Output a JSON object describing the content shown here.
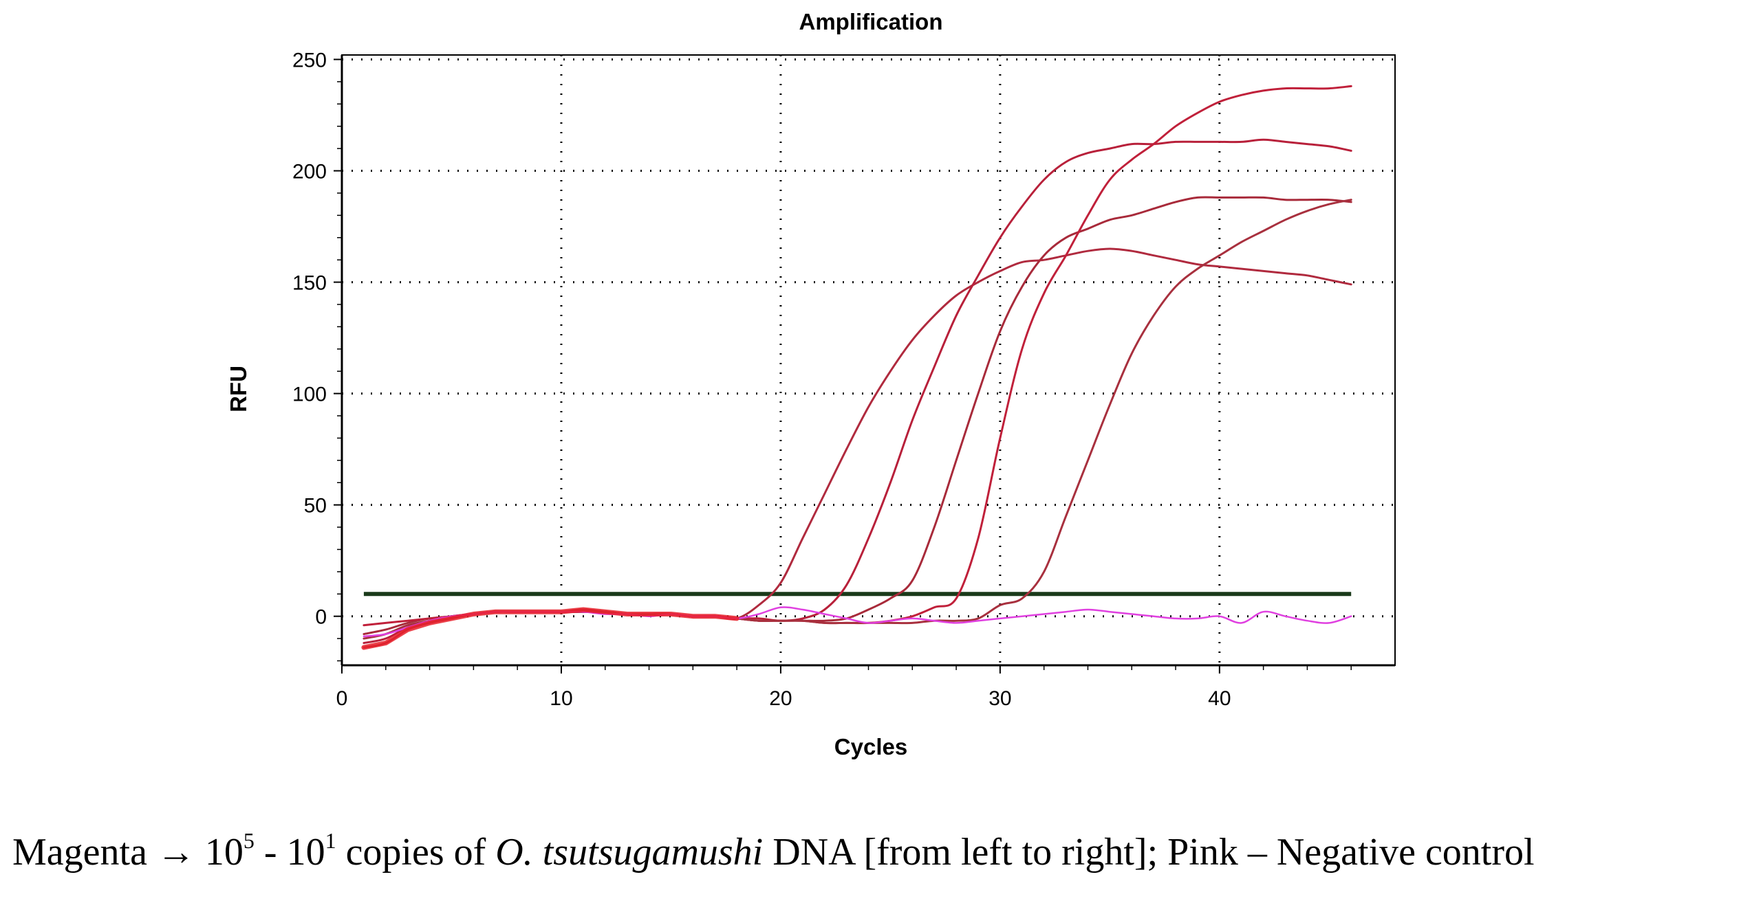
{
  "caption": {
    "series_word": "Magenta",
    "arrow": "→",
    "base_high": "10",
    "exp_high": "5",
    "range_sep": " - ",
    "base_low": "10",
    "exp_low": "1",
    "text_copies": " copies of ",
    "organism": "O. tsutsugamushi",
    "text_dna": " DNA [from left to right]; Pink – Negative control"
  },
  "chart_data": {
    "type": "line",
    "title": "Amplification",
    "xlabel": "Cycles",
    "ylabel": "RFU",
    "xlim": [
      0,
      48
    ],
    "ylim": [
      -22,
      252
    ],
    "xticks": [
      0,
      10,
      20,
      30,
      40
    ],
    "yticks": [
      0,
      50,
      100,
      150,
      200,
      250
    ],
    "grid": true,
    "legend": "none",
    "threshold": 10,
    "colors": {
      "curve1": "#b02a3e",
      "curve2": "#b8203a",
      "curve3": "#a82a3a",
      "curve4": "#c0203a",
      "curve5": "#a8303e",
      "negative": "#e040e0",
      "threshold": "#1a3a1a",
      "grid": "#000000"
    },
    "series": [
      {
        "color_key": "curve1",
        "x": [
          1,
          2,
          3,
          4,
          5,
          6,
          7,
          8,
          9,
          10,
          11,
          12,
          13,
          14,
          15,
          16,
          17,
          18,
          19,
          20,
          21,
          22,
          23,
          24,
          25,
          26,
          27,
          28,
          29,
          30,
          31,
          32,
          33,
          34,
          35,
          36,
          37,
          38,
          39,
          40,
          41,
          42,
          43,
          44,
          45,
          46
        ],
        "y": [
          -14,
          -12,
          -6,
          -3,
          -1,
          1,
          2,
          2,
          2,
          2,
          3,
          2,
          1,
          1,
          1,
          0,
          0,
          -1,
          5,
          15,
          35,
          55,
          75,
          94,
          110,
          124,
          135,
          144,
          150,
          155,
          159,
          160,
          162,
          164,
          165,
          164,
          162,
          160,
          158,
          157,
          156,
          155,
          154,
          153,
          151,
          149
        ]
      },
      {
        "color_key": "curve2",
        "x": [
          1,
          2,
          3,
          4,
          5,
          6,
          7,
          8,
          9,
          10,
          11,
          12,
          13,
          14,
          15,
          16,
          17,
          18,
          19,
          20,
          21,
          22,
          23,
          24,
          25,
          26,
          27,
          28,
          29,
          30,
          31,
          32,
          33,
          34,
          35,
          36,
          37,
          38,
          39,
          40,
          41,
          42,
          43,
          44,
          45,
          46
        ],
        "y": [
          -12,
          -10,
          -5,
          -2,
          0,
          1,
          2,
          2,
          2,
          2,
          2,
          2,
          1,
          1,
          1,
          0,
          0,
          -1,
          -1,
          -2,
          -1,
          3,
          14,
          35,
          60,
          88,
          112,
          135,
          153,
          170,
          184,
          196,
          204,
          208,
          210,
          212,
          212,
          213,
          213,
          213,
          213,
          214,
          213,
          212,
          211,
          209
        ]
      },
      {
        "color_key": "curve3",
        "x": [
          1,
          2,
          3,
          4,
          5,
          6,
          7,
          8,
          9,
          10,
          11,
          12,
          13,
          14,
          15,
          16,
          17,
          18,
          19,
          20,
          21,
          22,
          23,
          24,
          25,
          26,
          27,
          28,
          29,
          30,
          31,
          32,
          33,
          34,
          35,
          36,
          37,
          38,
          39,
          40,
          41,
          42,
          43,
          44,
          45,
          46
        ],
        "y": [
          -8,
          -6,
          -3,
          -1,
          0,
          1,
          2,
          2,
          2,
          2,
          2,
          2,
          1,
          1,
          1,
          0,
          0,
          -1,
          -2,
          -2,
          -2,
          -2,
          -1,
          3,
          8,
          16,
          40,
          70,
          100,
          128,
          148,
          162,
          170,
          174,
          178,
          180,
          183,
          186,
          188,
          188,
          188,
          188,
          187,
          187,
          187,
          186
        ]
      },
      {
        "color_key": "curve4",
        "x": [
          1,
          2,
          3,
          4,
          5,
          6,
          7,
          8,
          9,
          10,
          11,
          12,
          13,
          14,
          15,
          16,
          17,
          18,
          19,
          20,
          21,
          22,
          23,
          24,
          25,
          26,
          27,
          28,
          29,
          30,
          31,
          32,
          33,
          34,
          35,
          36,
          37,
          38,
          39,
          40,
          41,
          42,
          43,
          44,
          45,
          46
        ],
        "y": [
          -4,
          -3,
          -2,
          -1,
          0,
          1,
          2,
          2,
          2,
          2,
          2,
          2,
          1,
          1,
          1,
          0,
          0,
          -1,
          -2,
          -2,
          -2,
          -3,
          -3,
          -3,
          -2,
          0,
          4,
          8,
          35,
          80,
          120,
          145,
          162,
          180,
          196,
          205,
          212,
          220,
          226,
          231,
          234,
          236,
          237,
          237,
          237,
          238
        ]
      },
      {
        "color_key": "curve5",
        "x": [
          1,
          2,
          3,
          4,
          5,
          6,
          7,
          8,
          9,
          10,
          11,
          12,
          13,
          14,
          15,
          16,
          17,
          18,
          19,
          20,
          21,
          22,
          23,
          24,
          25,
          26,
          27,
          28,
          29,
          30,
          31,
          32,
          33,
          34,
          35,
          36,
          37,
          38,
          39,
          40,
          41,
          42,
          43,
          44,
          45,
          46
        ],
        "y": [
          -10,
          -8,
          -4,
          -2,
          0,
          1,
          2,
          2,
          2,
          2,
          2,
          2,
          1,
          1,
          1,
          0,
          0,
          -1,
          -2,
          -2,
          -2,
          -3,
          -3,
          -3,
          -3,
          -3,
          -2,
          -2,
          -1,
          5,
          8,
          20,
          45,
          70,
          95,
          118,
          135,
          148,
          156,
          162,
          168,
          173,
          178,
          182,
          185,
          187
        ]
      },
      {
        "color_key": "negative",
        "x": [
          1,
          2,
          3,
          4,
          5,
          6,
          7,
          8,
          9,
          10,
          11,
          12,
          13,
          14,
          15,
          16,
          17,
          18,
          19,
          20,
          21,
          22,
          23,
          24,
          25,
          26,
          27,
          28,
          29,
          30,
          31,
          32,
          33,
          34,
          35,
          36,
          37,
          38,
          39,
          40,
          41,
          42,
          43,
          44,
          45,
          46
        ],
        "y": [
          -9,
          -8,
          -5,
          -2,
          0,
          1,
          2,
          2,
          2,
          2,
          2,
          1,
          1,
          0,
          1,
          0,
          0,
          -1,
          1,
          4,
          3,
          1,
          -1,
          -3,
          -2,
          -1,
          -2,
          -3,
          -2,
          -1,
          0,
          1,
          2,
          3,
          2,
          1,
          0,
          -1,
          -1,
          0,
          -3,
          2,
          0,
          -2,
          -3,
          0
        ]
      }
    ]
  }
}
